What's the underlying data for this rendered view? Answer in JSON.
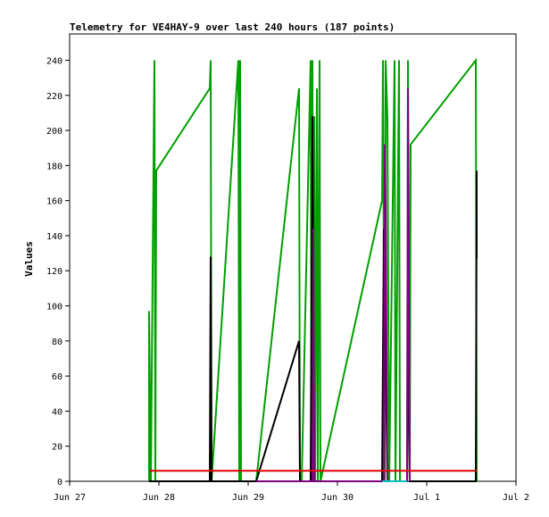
{
  "chart_data": {
    "type": "line",
    "title": "Telemetry for VE4HAY-9 over last 240 hours (187 points)",
    "xlabel": "",
    "ylabel": "Values",
    "xlim": [
      "Jun 27",
      "Jul 2"
    ],
    "ylim": [
      0,
      255
    ],
    "x_unit": "days from Jun 27 00:00",
    "x_ticks": [
      {
        "label": "Jun 27",
        "value": 0
      },
      {
        "label": "Jun 28",
        "value": 1
      },
      {
        "label": "Jun 29",
        "value": 2
      },
      {
        "label": "Jun 30",
        "value": 3
      },
      {
        "label": "Jul 1",
        "value": 4
      },
      {
        "label": "Jul 2",
        "value": 5
      }
    ],
    "y_ticks": [
      0,
      20,
      40,
      60,
      80,
      100,
      120,
      140,
      160,
      180,
      200,
      220,
      240
    ],
    "grid": false,
    "legend": "none",
    "series": [
      {
        "color": "#00a000",
        "points": [
          [
            0.89,
            0
          ],
          [
            0.89,
            97
          ],
          [
            0.91,
            0
          ],
          [
            0.95,
            240
          ],
          [
            0.96,
            0
          ],
          [
            0.97,
            177
          ],
          [
            1.57,
            224
          ],
          [
            1.58,
            240
          ],
          [
            1.59,
            0
          ],
          [
            1.89,
            240
          ],
          [
            1.9,
            0
          ],
          [
            1.91,
            240
          ],
          [
            1.92,
            0
          ],
          [
            2.09,
            0
          ],
          [
            2.57,
            224
          ],
          [
            2.58,
            0
          ],
          [
            2.6,
            0
          ],
          [
            2.7,
            240
          ],
          [
            2.71,
            0
          ],
          [
            2.72,
            240
          ],
          [
            2.73,
            0
          ],
          [
            2.74,
            208
          ],
          [
            2.75,
            0
          ],
          [
            2.77,
            224
          ],
          [
            2.78,
            0
          ],
          [
            2.8,
            240
          ],
          [
            2.81,
            0
          ],
          [
            3.5,
            160
          ],
          [
            3.51,
            240
          ],
          [
            3.53,
            0
          ],
          [
            3.54,
            240
          ],
          [
            3.56,
            207
          ],
          [
            3.58,
            0
          ],
          [
            3.64,
            240
          ],
          [
            3.65,
            0
          ],
          [
            3.69,
            240
          ],
          [
            3.7,
            0
          ],
          [
            3.78,
            0
          ],
          [
            3.79,
            240
          ],
          [
            3.81,
            0
          ],
          [
            3.82,
            192
          ],
          [
            4.55,
            240
          ],
          [
            4.56,
            0
          ]
        ]
      },
      {
        "color": "#000000",
        "points": [
          [
            0.89,
            0
          ],
          [
            1.57,
            0
          ],
          [
            1.58,
            128
          ],
          [
            1.59,
            0
          ],
          [
            2.09,
            0
          ],
          [
            2.57,
            80
          ],
          [
            2.58,
            0
          ],
          [
            2.7,
            0
          ],
          [
            2.72,
            208
          ],
          [
            2.74,
            0
          ],
          [
            2.77,
            0
          ],
          [
            3.5,
            0
          ],
          [
            3.52,
            144
          ],
          [
            3.56,
            0
          ],
          [
            3.58,
            0
          ],
          [
            3.78,
            0
          ],
          [
            3.8,
            112
          ],
          [
            3.81,
            0
          ],
          [
            4.55,
            0
          ],
          [
            4.56,
            177
          ],
          [
            4.56,
            127
          ],
          [
            4.56,
            152
          ]
        ]
      },
      {
        "color": "#800080",
        "points": [
          [
            2.09,
            0
          ],
          [
            2.57,
            0
          ],
          [
            2.72,
            0
          ],
          [
            2.73,
            144
          ],
          [
            2.74,
            0
          ],
          [
            3.52,
            0
          ],
          [
            3.53,
            192
          ],
          [
            3.54,
            160
          ],
          [
            3.56,
            0
          ],
          [
            3.78,
            0
          ],
          [
            3.79,
            224
          ],
          [
            3.8,
            112
          ],
          [
            3.81,
            0
          ]
        ]
      },
      {
        "color": "#00c0c0",
        "points": [
          [
            3.5,
            0
          ],
          [
            3.52,
            0
          ],
          [
            3.78,
            0
          ]
        ]
      },
      {
        "color": "#e00000",
        "points": [
          [
            0.89,
            6
          ],
          [
            4.56,
            6
          ]
        ]
      }
    ]
  }
}
